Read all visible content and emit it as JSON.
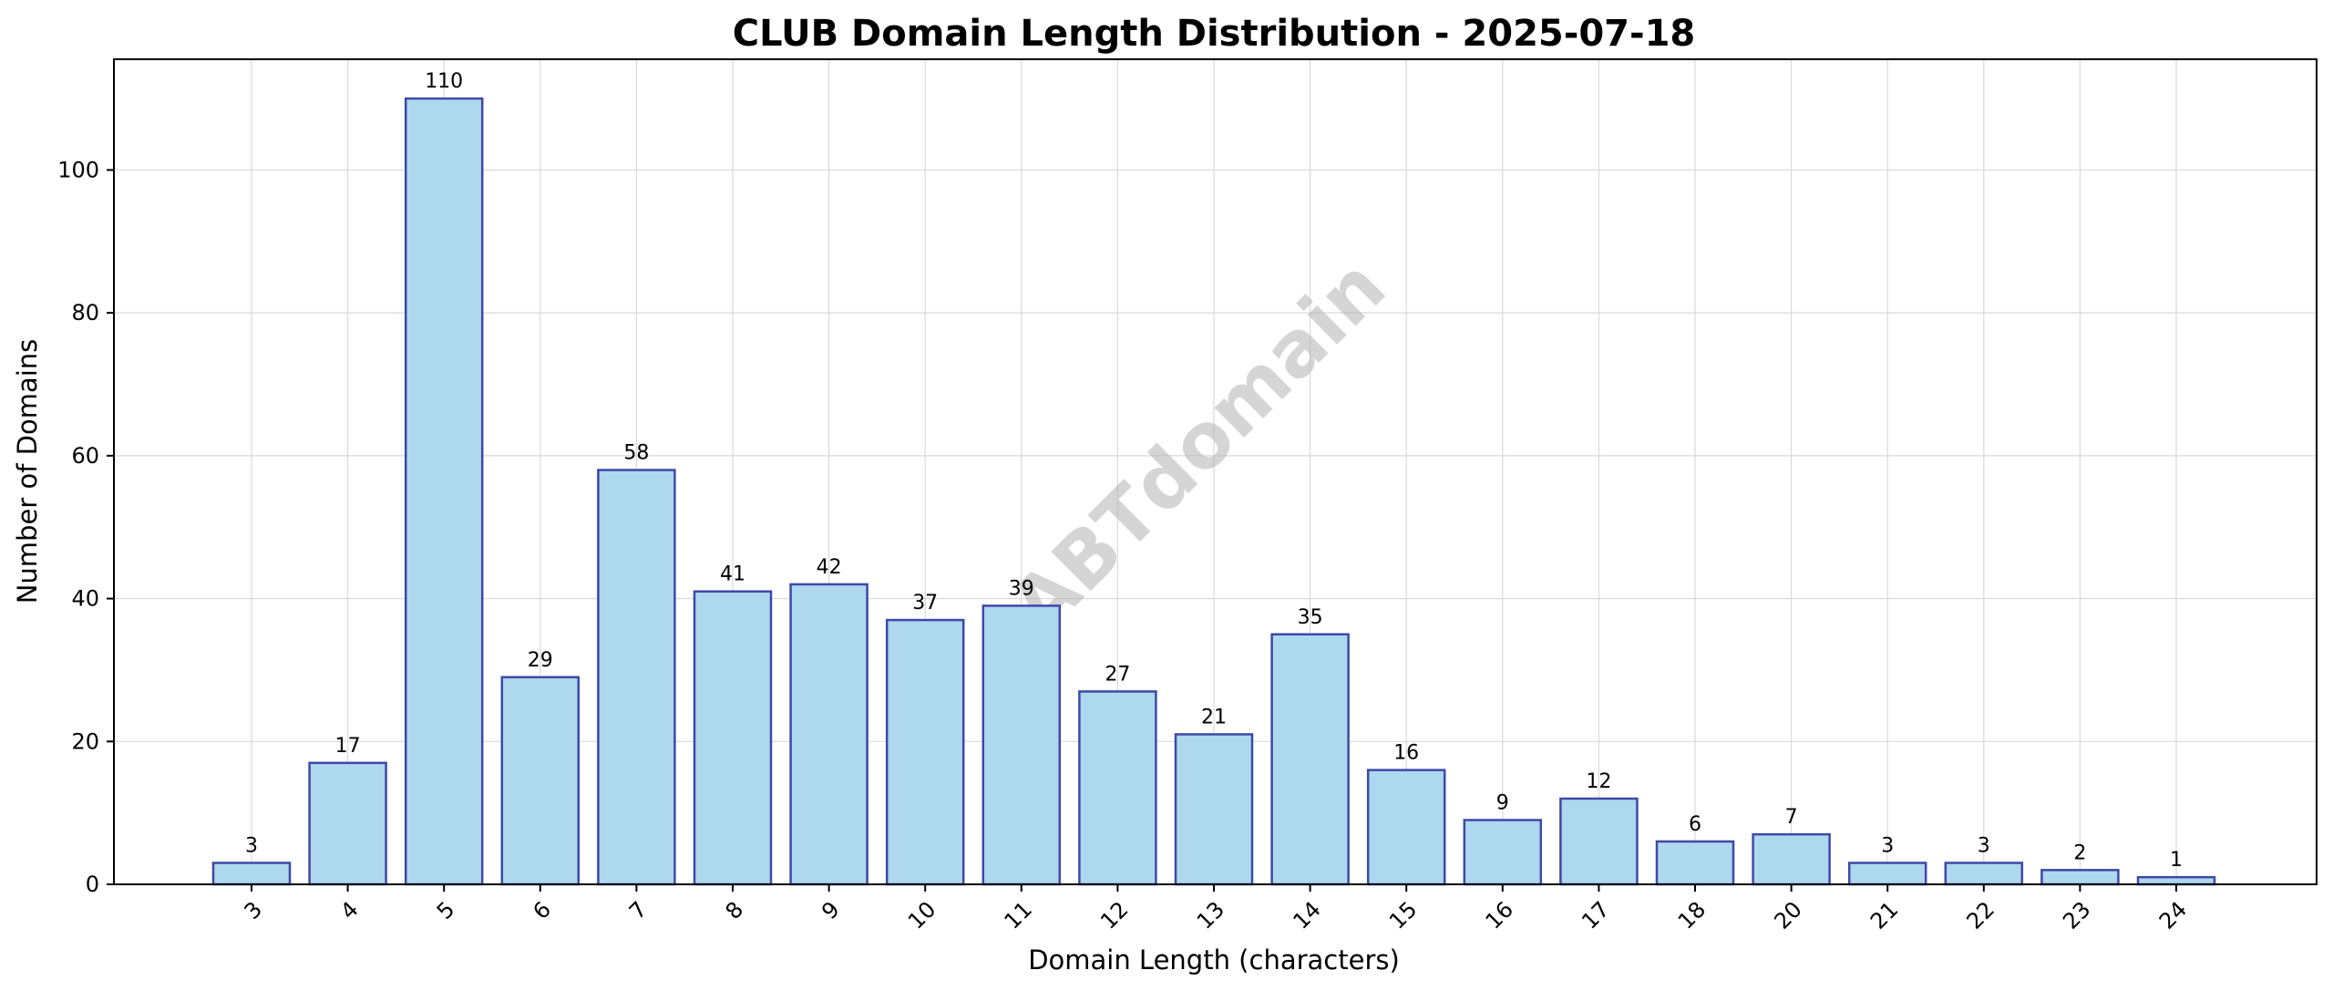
{
  "chart_data": {
    "type": "bar",
    "title": "CLUB Domain Length Distribution - 2025-07-18",
    "xlabel": "Domain Length (characters)",
    "ylabel": "Number of Domains",
    "categories": [
      "3",
      "4",
      "5",
      "6",
      "7",
      "8",
      "9",
      "10",
      "11",
      "12",
      "13",
      "14",
      "15",
      "16",
      "17",
      "18",
      "20",
      "21",
      "22",
      "23",
      "24"
    ],
    "values": [
      3,
      17,
      110,
      29,
      58,
      41,
      42,
      37,
      39,
      27,
      21,
      35,
      16,
      9,
      12,
      6,
      7,
      3,
      3,
      2,
      1
    ],
    "ylim": [
      0,
      115.5
    ],
    "yticks": [
      0,
      20,
      40,
      60,
      80,
      100
    ],
    "grid": true,
    "data_labels": true,
    "bar_color": "#add8ee",
    "bar_edge_color": "#3f48a8",
    "watermark": "ABTdomain"
  }
}
